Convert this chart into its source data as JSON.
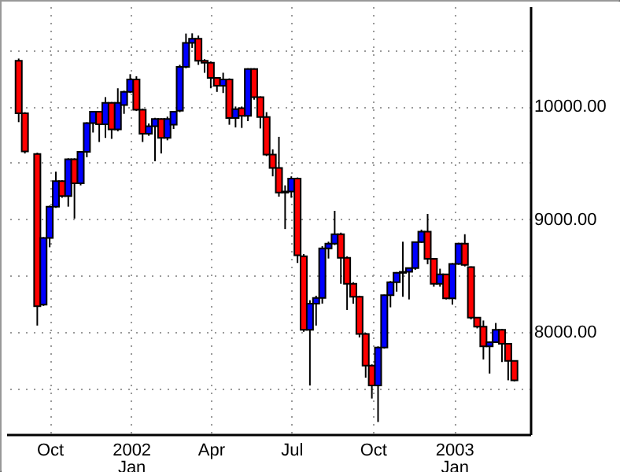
{
  "chart_data": {
    "type": "candlestick",
    "x": [
      "2001-08-27",
      "2001-09-03",
      "2001-09-17",
      "2001-09-24",
      "2001-10-01",
      "2001-10-08",
      "2001-10-15",
      "2001-10-22",
      "2001-10-29",
      "2001-11-05",
      "2001-11-12",
      "2001-11-19",
      "2001-11-26",
      "2001-12-03",
      "2001-12-10",
      "2001-12-17",
      "2001-12-24",
      "2001-12-31",
      "2002-01-07",
      "2002-01-14",
      "2002-01-21",
      "2002-01-28",
      "2002-02-04",
      "2002-02-11",
      "2002-02-18",
      "2002-02-25",
      "2002-03-04",
      "2002-03-11",
      "2002-03-18",
      "2002-03-25",
      "2002-04-01",
      "2002-04-08",
      "2002-04-15",
      "2002-04-22",
      "2002-04-29",
      "2002-05-06",
      "2002-05-13",
      "2002-05-20",
      "2002-05-27",
      "2002-06-03",
      "2002-06-10",
      "2002-06-17",
      "2002-06-24",
      "2002-07-01",
      "2002-07-08",
      "2002-07-15",
      "2002-07-22",
      "2002-07-29",
      "2002-08-05",
      "2002-08-12",
      "2002-08-19",
      "2002-08-26",
      "2002-09-02",
      "2002-09-09",
      "2002-09-16",
      "2002-09-23",
      "2002-09-30",
      "2002-10-07",
      "2002-10-14",
      "2002-10-21",
      "2002-10-28",
      "2002-11-04",
      "2002-11-11",
      "2002-11-18",
      "2002-11-25",
      "2002-12-02",
      "2002-12-09",
      "2002-12-16",
      "2002-12-23",
      "2002-12-30",
      "2003-01-06",
      "2003-01-13",
      "2003-01-20",
      "2003-01-27",
      "2003-02-03",
      "2003-02-10",
      "2003-02-17",
      "2003-02-24",
      "2003-03-03",
      "2003-03-10"
    ],
    "ohlc": [
      [
        10407,
        10426,
        9861,
        9940
      ],
      [
        9940,
        9950,
        9583,
        9602
      ],
      [
        9579,
        9590,
        8055,
        8227
      ],
      [
        8241,
        8840,
        8230,
        8833
      ],
      [
        8833,
        9120,
        8750,
        9111
      ],
      [
        9111,
        9421,
        9100,
        9338
      ],
      [
        9338,
        9345,
        9190,
        9204
      ],
      [
        9204,
        9540,
        9111,
        9532
      ],
      [
        9532,
        9540,
        9005,
        9319
      ],
      [
        9319,
        9600,
        9300,
        9597
      ],
      [
        9597,
        9860,
        9550,
        9852
      ],
      [
        9852,
        9960,
        9769,
        9954
      ],
      [
        9954,
        9960,
        9685,
        9843
      ],
      [
        9843,
        10083,
        9722,
        10032
      ],
      [
        10032,
        10040,
        9713,
        9796
      ],
      [
        9796,
        10162,
        9780,
        10032
      ],
      [
        10014,
        10140,
        9935,
        10130
      ],
      [
        10130,
        10287,
        10120,
        10241
      ],
      [
        10241,
        10269,
        9960,
        9972
      ],
      [
        9972,
        9980,
        9685,
        9759
      ],
      [
        9759,
        9850,
        9740,
        9824
      ],
      [
        9824,
        9900,
        9514,
        9889
      ],
      [
        9889,
        9895,
        9583,
        9722
      ],
      [
        9722,
        9910,
        9700,
        9889
      ],
      [
        9838,
        9960,
        9800,
        9954
      ],
      [
        9963,
        10370,
        9950,
        10352
      ],
      [
        10352,
        10648,
        10340,
        10565
      ],
      [
        10565,
        10650,
        10520,
        10602
      ],
      [
        10602,
        10630,
        10370,
        10407
      ],
      [
        10407,
        10420,
        10300,
        10389
      ],
      [
        10389,
        10400,
        10162,
        10255
      ],
      [
        10255,
        10260,
        10130,
        10185
      ],
      [
        10185,
        10300,
        10120,
        10240
      ],
      [
        10240,
        10250,
        9838,
        9898
      ],
      [
        9898,
        10000,
        9815,
        9977
      ],
      [
        9986,
        10000,
        9810,
        9917
      ],
      [
        9917,
        10340,
        9870,
        10333
      ],
      [
        10333,
        10340,
        10060,
        10083
      ],
      [
        10083,
        10090,
        9805,
        9907
      ],
      [
        9907,
        9950,
        9560,
        9574
      ],
      [
        9574,
        9620,
        9380,
        9454
      ],
      [
        9454,
        9731,
        9200,
        9236
      ],
      [
        9236,
        9300,
        8912,
        9245
      ],
      [
        9245,
        9380,
        9190,
        9361
      ],
      [
        9361,
        9370,
        8611,
        8680
      ],
      [
        8671,
        8690,
        8000,
        8018
      ],
      [
        8018,
        8280,
        7523,
        8250
      ],
      [
        8250,
        8320,
        8055,
        8301
      ],
      [
        8301,
        8760,
        8250,
        8741
      ],
      [
        8741,
        8800,
        8650,
        8782
      ],
      [
        8782,
        9074,
        8770,
        8866
      ],
      [
        8866,
        8880,
        8426,
        8657
      ],
      [
        8657,
        8670,
        8194,
        8426
      ],
      [
        8426,
        8440,
        8250,
        8310
      ],
      [
        8310,
        8320,
        7950,
        7981
      ],
      [
        7981,
        7990,
        7592,
        7699
      ],
      [
        7699,
        7710,
        7407,
        7523
      ],
      [
        7523,
        7870,
        7199,
        7861
      ],
      [
        7861,
        8330,
        7850,
        8324
      ],
      [
        8324,
        8450,
        8217,
        8440
      ],
      [
        8440,
        8530,
        8356,
        8523
      ],
      [
        8523,
        8800,
        8310,
        8532
      ],
      [
        8532,
        8570,
        8287,
        8565
      ],
      [
        8565,
        8800,
        8550,
        8796
      ],
      [
        8796,
        8907,
        8790,
        8889
      ],
      [
        8889,
        9046,
        8600,
        8648
      ],
      [
        8648,
        8655,
        8400,
        8426
      ],
      [
        8426,
        8560,
        8400,
        8509
      ],
      [
        8509,
        8515,
        8287,
        8296
      ],
      [
        8296,
        8610,
        8241,
        8602
      ],
      [
        8602,
        8790,
        8595,
        8782
      ],
      [
        8782,
        8866,
        8580,
        8593
      ],
      [
        8574,
        8580,
        8110,
        8125
      ],
      [
        8125,
        8130,
        8030,
        8046
      ],
      [
        8046,
        8100,
        7754,
        7870
      ],
      [
        7870,
        7915,
        7629,
        7907
      ],
      [
        7907,
        8078,
        7900,
        8018
      ],
      [
        8018,
        8025,
        7731,
        7893
      ],
      [
        7893,
        7900,
        7569,
        7741
      ],
      [
        7741,
        7745,
        7560,
        7569
      ]
    ],
    "colors": [
      "#ff0000",
      "#ff0000",
      "#ff0000",
      "#0000ff",
      "#0000ff",
      "#0000ff",
      "#ff0000",
      "#0000ff",
      "#ff0000",
      "#0000ff",
      "#0000ff",
      "#0000ff",
      "#ff0000",
      "#0000ff",
      "#ff0000",
      "#0000ff",
      "#0000ff",
      "#0000ff",
      "#ff0000",
      "#ff0000",
      "#0000ff",
      "#0000ff",
      "#ff0000",
      "#0000ff",
      "#0000ff",
      "#0000ff",
      "#0000ff",
      "#0000ff",
      "#ff0000",
      "#ff0000",
      "#ff0000",
      "#ff0000",
      "#0000ff",
      "#ff0000",
      "#0000ff",
      "#ff0000",
      "#0000ff",
      "#ff0000",
      "#ff0000",
      "#ff0000",
      "#ff0000",
      "#ff0000",
      "#0000ff",
      "#0000ff",
      "#ff0000",
      "#ff0000",
      "#0000ff",
      "#0000ff",
      "#0000ff",
      "#0000ff",
      "#0000ff",
      "#ff0000",
      "#ff0000",
      "#ff0000",
      "#ff0000",
      "#ff0000",
      "#ff0000",
      "#0000ff",
      "#0000ff",
      "#0000ff",
      "#0000ff",
      "#0000ff",
      "#0000ff",
      "#0000ff",
      "#0000ff",
      "#ff0000",
      "#ff0000",
      "#0000ff",
      "#ff0000",
      "#0000ff",
      "#0000ff",
      "#ff0000",
      "#ff0000",
      "#ff0000",
      "#ff0000",
      "#0000ff",
      "#0000ff",
      "#ff0000",
      "#ff0000",
      "#ff0000"
    ],
    "xlim": [
      "2001-08-13",
      "2003-03-28"
    ],
    "xticks": [
      {
        "value": "2001-10-01",
        "label": "Oct"
      },
      {
        "value": "2002-01-01",
        "label": "2002\nJan"
      },
      {
        "value": "2002-04-01",
        "label": "Apr"
      },
      {
        "value": "2002-07-01",
        "label": "Jul"
      },
      {
        "value": "2002-10-01",
        "label": "Oct"
      },
      {
        "value": "2003-01-01",
        "label": "2003\nJan"
      }
    ],
    "ylim": [
      7090,
      10890
    ],
    "yticks": [
      {
        "value": 7500,
        "label": null
      },
      {
        "value": 8000,
        "label": "8000.00"
      },
      {
        "value": 8500,
        "label": null
      },
      {
        "value": 9000,
        "label": "9000.00"
      },
      {
        "value": 9500,
        "label": null
      },
      {
        "value": 10000,
        "label": "10000.00"
      },
      {
        "value": 10500,
        "label": null
      }
    ],
    "grid": true
  }
}
